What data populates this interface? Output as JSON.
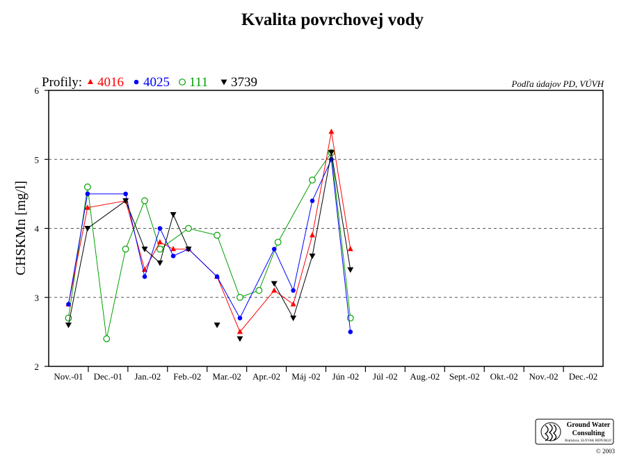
{
  "title": "Kvalita povrchovej vody",
  "source_note": "Podľa údajov PD, VÚVH",
  "legend": {
    "prefix": "Profily:",
    "entries": [
      {
        "label": "4016",
        "marker": "triangle-up",
        "color": "#ff0000"
      },
      {
        "label": "4025",
        "marker": "circle-filled",
        "color": "#0000ff"
      },
      {
        "label": "111",
        "marker": "circle-open",
        "color": "#00a000"
      },
      {
        "label": "3739",
        "marker": "triangle-down",
        "color": "#000000"
      }
    ]
  },
  "logo": {
    "line1": "Ground Water",
    "line2": "Consulting",
    "line3": "Bratislava, SLOVAK REPUBLIC",
    "copyright": "© 2003"
  },
  "chart_data": {
    "type": "line",
    "title": "Kvalita povrchovej vody",
    "xlabel": "",
    "ylabel": "CHSKMn [mg/l]",
    "ylim": [
      2,
      6
    ],
    "yticks": [
      "2",
      "3",
      "4",
      "5",
      "6"
    ],
    "grid": "dashed horizontal lines at 3, 4, 5",
    "legend_position": "top-left",
    "categories": [
      "Nov.-01",
      "Dec.-01",
      "Jan.-02",
      "Feb.-02",
      "Mar.-02",
      "Apr.-02",
      "Máj -02",
      "Jún -02",
      "Júl -02",
      "Aug.-02",
      "Sept.-02",
      "Okt.-02",
      "Nov.-02",
      "Dec.-02"
    ],
    "series": [
      {
        "name": "4016",
        "color": "#ff0000",
        "marker": "triangle-up",
        "points": [
          [
            0,
            2.9
          ],
          [
            1,
            4.3
          ],
          [
            3,
            4.4
          ],
          [
            4,
            3.4
          ],
          [
            4.8,
            3.8
          ],
          [
            5.5,
            3.7
          ],
          [
            6.3,
            3.7
          ],
          [
            7.8,
            3.3
          ],
          [
            9,
            2.5
          ],
          [
            10.8,
            3.1
          ],
          [
            11.8,
            2.9
          ],
          [
            12.8,
            3.9
          ],
          [
            13.8,
            5.4
          ],
          [
            14.8,
            3.7
          ]
        ]
      },
      {
        "name": "4025",
        "color": "#0000ff",
        "marker": "circle-filled",
        "points": [
          [
            0,
            2.9
          ],
          [
            1,
            4.5
          ],
          [
            3,
            4.5
          ],
          [
            4,
            3.3
          ],
          [
            4.8,
            4.0
          ],
          [
            5.5,
            3.6
          ],
          [
            6.3,
            3.7
          ],
          [
            7.8,
            3.3
          ],
          [
            9,
            2.7
          ],
          [
            10.8,
            3.7
          ],
          [
            11.8,
            3.1
          ],
          [
            12.8,
            4.4
          ],
          [
            13.8,
            5.0
          ],
          [
            14.8,
            2.5
          ]
        ]
      },
      {
        "name": "111",
        "color": "#00a000",
        "marker": "circle-open",
        "points": [
          [
            0,
            2.7
          ],
          [
            1,
            4.6
          ],
          [
            2,
            2.4
          ],
          [
            3,
            3.7
          ],
          [
            4,
            4.4
          ],
          [
            4.8,
            3.7
          ],
          [
            6.3,
            4.0
          ],
          [
            7.8,
            3.9
          ],
          [
            9,
            3.0
          ],
          [
            10,
            3.1
          ],
          [
            11,
            3.8
          ],
          [
            12.8,
            4.7
          ],
          [
            13.8,
            5.1
          ],
          [
            14.8,
            2.7
          ]
        ]
      },
      {
        "name": "3739",
        "color": "#000000",
        "marker": "triangle-down",
        "points": [
          [
            0,
            2.6
          ],
          [
            1,
            4.0
          ],
          [
            3,
            4.4
          ],
          [
            4,
            3.7
          ],
          [
            4.8,
            3.5
          ],
          [
            5.5,
            4.2
          ],
          [
            6.3,
            3.7
          ]
        ],
        "points2": [
          [
            10.8,
            3.2
          ],
          [
            11.8,
            2.7
          ],
          [
            12.8,
            3.6
          ],
          [
            13.8,
            5.1
          ],
          [
            14.8,
            3.4
          ]
        ],
        "isolated": [
          [
            7.8,
            2.6
          ],
          [
            9,
            2.4
          ]
        ]
      }
    ]
  }
}
